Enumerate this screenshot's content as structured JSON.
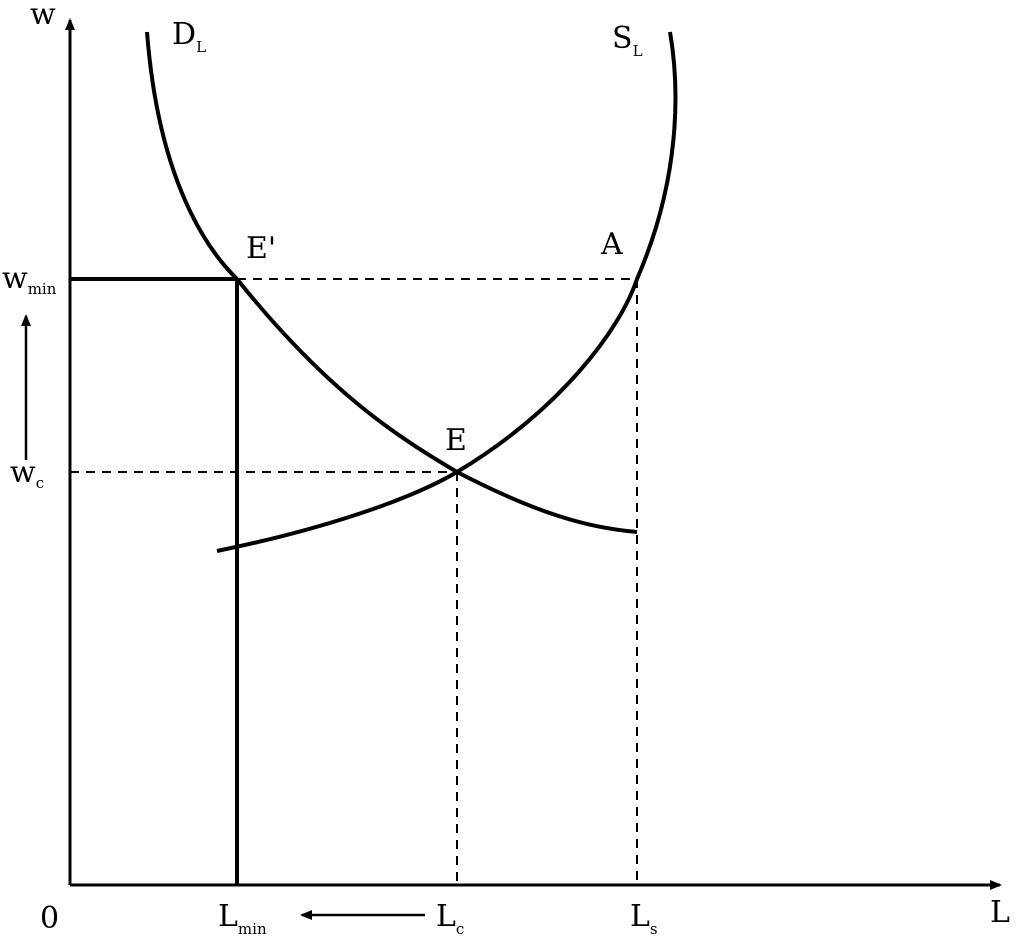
{
  "axes": {
    "y_label": "w",
    "x_label": "L",
    "origin_label": "0"
  },
  "curves": {
    "demand": {
      "label": "D",
      "subscript": "L"
    },
    "supply": {
      "label": "S",
      "subscript": "L"
    }
  },
  "points": {
    "e_prime": "E'",
    "a": "A",
    "e": "E"
  },
  "y_ticks": {
    "w_min": {
      "label": "w",
      "subscript": "min"
    },
    "w_c": {
      "label": "w",
      "subscript": "c"
    }
  },
  "x_ticks": {
    "l_min": {
      "label": "L",
      "subscript": "min"
    },
    "l_c": {
      "label": "L",
      "subscript": "c"
    },
    "l_s": {
      "label": "L",
      "subscript": "s"
    }
  },
  "colors": {
    "ink": "#000000",
    "background": "#ffffff"
  }
}
